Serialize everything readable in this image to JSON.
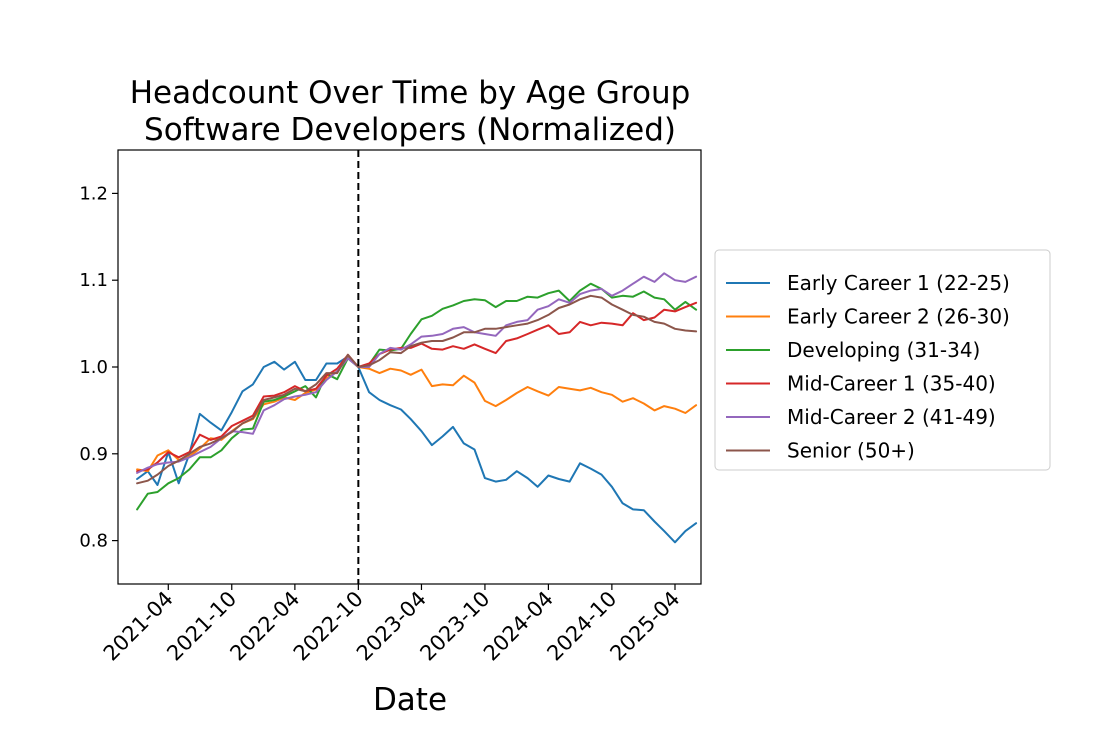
{
  "chart_data": {
    "type": "line",
    "title": [
      "Headcount Over Time by Age Group",
      "Software Developers (Normalized)"
    ],
    "xlabel": "Date",
    "ylabel": "",
    "ylim": [
      0.75,
      1.25
    ],
    "yticks": [
      0.8,
      0.9,
      1.0,
      1.1,
      1.2
    ],
    "ytick_labels": [
      "0.8",
      "0.9",
      "1.0",
      "1.1",
      "1.2"
    ],
    "xlim": [
      "2020-11-07",
      "2025-06-15"
    ],
    "xticks": [
      "2021-04-01",
      "2021-10-01",
      "2022-04-01",
      "2022-10-01",
      "2023-04-01",
      "2023-10-01",
      "2024-04-01",
      "2024-10-01",
      "2025-04-01"
    ],
    "xtick_labels": [
      "2021-04",
      "2021-10",
      "2022-04",
      "2022-10",
      "2023-04",
      "2023-10",
      "2024-04",
      "2024-10",
      "2025-04"
    ],
    "reference_line": {
      "x": "2022-10-01",
      "style": "dashed",
      "color": "#000000"
    },
    "legend_position": "outside-right",
    "x": [
      "2021-01",
      "2021-02",
      "2021-03",
      "2021-04",
      "2021-05",
      "2021-06",
      "2021-07",
      "2021-08",
      "2021-09",
      "2021-10",
      "2021-11",
      "2021-12",
      "2022-01",
      "2022-02",
      "2022-03",
      "2022-04",
      "2022-05",
      "2022-06",
      "2022-07",
      "2022-08",
      "2022-09",
      "2022-10",
      "2022-11",
      "2022-12",
      "2023-01",
      "2023-02",
      "2023-03",
      "2023-04",
      "2023-05",
      "2023-06",
      "2023-07",
      "2023-08",
      "2023-09",
      "2023-10",
      "2023-11",
      "2023-12",
      "2024-01",
      "2024-02",
      "2024-03",
      "2024-04",
      "2024-05",
      "2024-06",
      "2024-07",
      "2024-08",
      "2024-09",
      "2024-10",
      "2024-11",
      "2024-12",
      "2025-01",
      "2025-02",
      "2025-03",
      "2025-04",
      "2025-05",
      "2025-06"
    ],
    "series": [
      {
        "name": "Early Career 1 (22-25)",
        "color": "#1f77b4",
        "values": [
          0.871,
          0.88,
          0.864,
          0.902,
          0.866,
          0.9,
          0.946,
          0.936,
          0.927,
          0.948,
          0.972,
          0.98,
          1.0,
          1.006,
          0.997,
          1.006,
          0.985,
          0.985,
          1.004,
          1.004,
          1.012,
          1.0,
          0.971,
          0.962,
          0.956,
          0.951,
          0.94,
          0.926,
          0.91,
          0.92,
          0.931,
          0.912,
          0.905,
          0.872,
          0.868,
          0.87,
          0.88,
          0.872,
          0.862,
          0.875,
          0.871,
          0.868,
          0.889,
          0.883,
          0.876,
          0.862,
          0.843,
          0.836,
          0.835,
          0.822,
          0.811,
          0.798,
          0.811,
          0.82
        ]
      },
      {
        "name": "Early Career 2 (26-30)",
        "color": "#ff7f0e",
        "values": [
          0.882,
          0.88,
          0.898,
          0.904,
          0.893,
          0.897,
          0.906,
          0.918,
          0.916,
          0.926,
          0.935,
          0.94,
          0.957,
          0.96,
          0.965,
          0.962,
          0.97,
          0.974,
          0.987,
          0.995,
          1.012,
          1.0,
          0.998,
          0.993,
          0.998,
          0.996,
          0.991,
          0.997,
          0.978,
          0.98,
          0.979,
          0.99,
          0.982,
          0.961,
          0.955,
          0.962,
          0.97,
          0.977,
          0.972,
          0.967,
          0.977,
          0.975,
          0.973,
          0.976,
          0.971,
          0.968,
          0.96,
          0.964,
          0.958,
          0.95,
          0.955,
          0.952,
          0.947,
          0.956
        ]
      },
      {
        "name": "Developing (31-34)",
        "color": "#2ca02c",
        "values": [
          0.836,
          0.854,
          0.856,
          0.866,
          0.872,
          0.882,
          0.896,
          0.896,
          0.904,
          0.918,
          0.928,
          0.929,
          0.96,
          0.962,
          0.966,
          0.972,
          0.978,
          0.965,
          0.992,
          0.986,
          1.01,
          1.0,
          1.003,
          1.02,
          1.019,
          1.021,
          1.038,
          1.055,
          1.059,
          1.067,
          1.071,
          1.076,
          1.078,
          1.077,
          1.069,
          1.076,
          1.076,
          1.081,
          1.08,
          1.085,
          1.088,
          1.076,
          1.088,
          1.096,
          1.09,
          1.08,
          1.082,
          1.081,
          1.087,
          1.08,
          1.078,
          1.066,
          1.075,
          1.066
        ]
      },
      {
        "name": "Mid-Career 1 (35-40)",
        "color": "#d62728",
        "values": [
          0.88,
          0.882,
          0.89,
          0.902,
          0.896,
          0.902,
          0.922,
          0.916,
          0.92,
          0.932,
          0.938,
          0.944,
          0.966,
          0.967,
          0.971,
          0.978,
          0.972,
          0.975,
          0.99,
          0.998,
          1.014,
          1.0,
          1.004,
          1.015,
          1.02,
          1.022,
          1.022,
          1.027,
          1.021,
          1.02,
          1.024,
          1.021,
          1.026,
          1.021,
          1.016,
          1.03,
          1.033,
          1.038,
          1.043,
          1.048,
          1.038,
          1.04,
          1.052,
          1.048,
          1.051,
          1.05,
          1.048,
          1.062,
          1.054,
          1.057,
          1.066,
          1.064,
          1.069,
          1.074
        ]
      },
      {
        "name": "Mid-Career 2 (41-49)",
        "color": "#9467bd",
        "values": [
          0.878,
          0.884,
          0.888,
          0.89,
          0.891,
          0.896,
          0.902,
          0.908,
          0.918,
          0.926,
          0.925,
          0.923,
          0.95,
          0.956,
          0.963,
          0.966,
          0.968,
          0.971,
          0.985,
          0.995,
          1.01,
          1.0,
          1.0,
          1.015,
          1.022,
          1.02,
          1.026,
          1.035,
          1.036,
          1.038,
          1.044,
          1.046,
          1.04,
          1.038,
          1.036,
          1.048,
          1.052,
          1.054,
          1.066,
          1.07,
          1.078,
          1.074,
          1.084,
          1.088,
          1.09,
          1.082,
          1.088,
          1.096,
          1.104,
          1.098,
          1.108,
          1.1,
          1.098,
          1.104
        ]
      },
      {
        "name": "Senior (50+)",
        "color": "#8c564b",
        "values": [
          0.866,
          0.869,
          0.876,
          0.886,
          0.892,
          0.9,
          0.908,
          0.912,
          0.918,
          0.925,
          0.935,
          0.941,
          0.962,
          0.965,
          0.968,
          0.975,
          0.972,
          0.98,
          0.993,
          0.993,
          1.014,
          1.0,
          1.002,
          1.008,
          1.017,
          1.016,
          1.024,
          1.028,
          1.03,
          1.03,
          1.034,
          1.04,
          1.04,
          1.044,
          1.044,
          1.046,
          1.048,
          1.05,
          1.054,
          1.06,
          1.068,
          1.072,
          1.078,
          1.082,
          1.08,
          1.072,
          1.066,
          1.06,
          1.058,
          1.052,
          1.05,
          1.044,
          1.042,
          1.041
        ]
      }
    ]
  }
}
